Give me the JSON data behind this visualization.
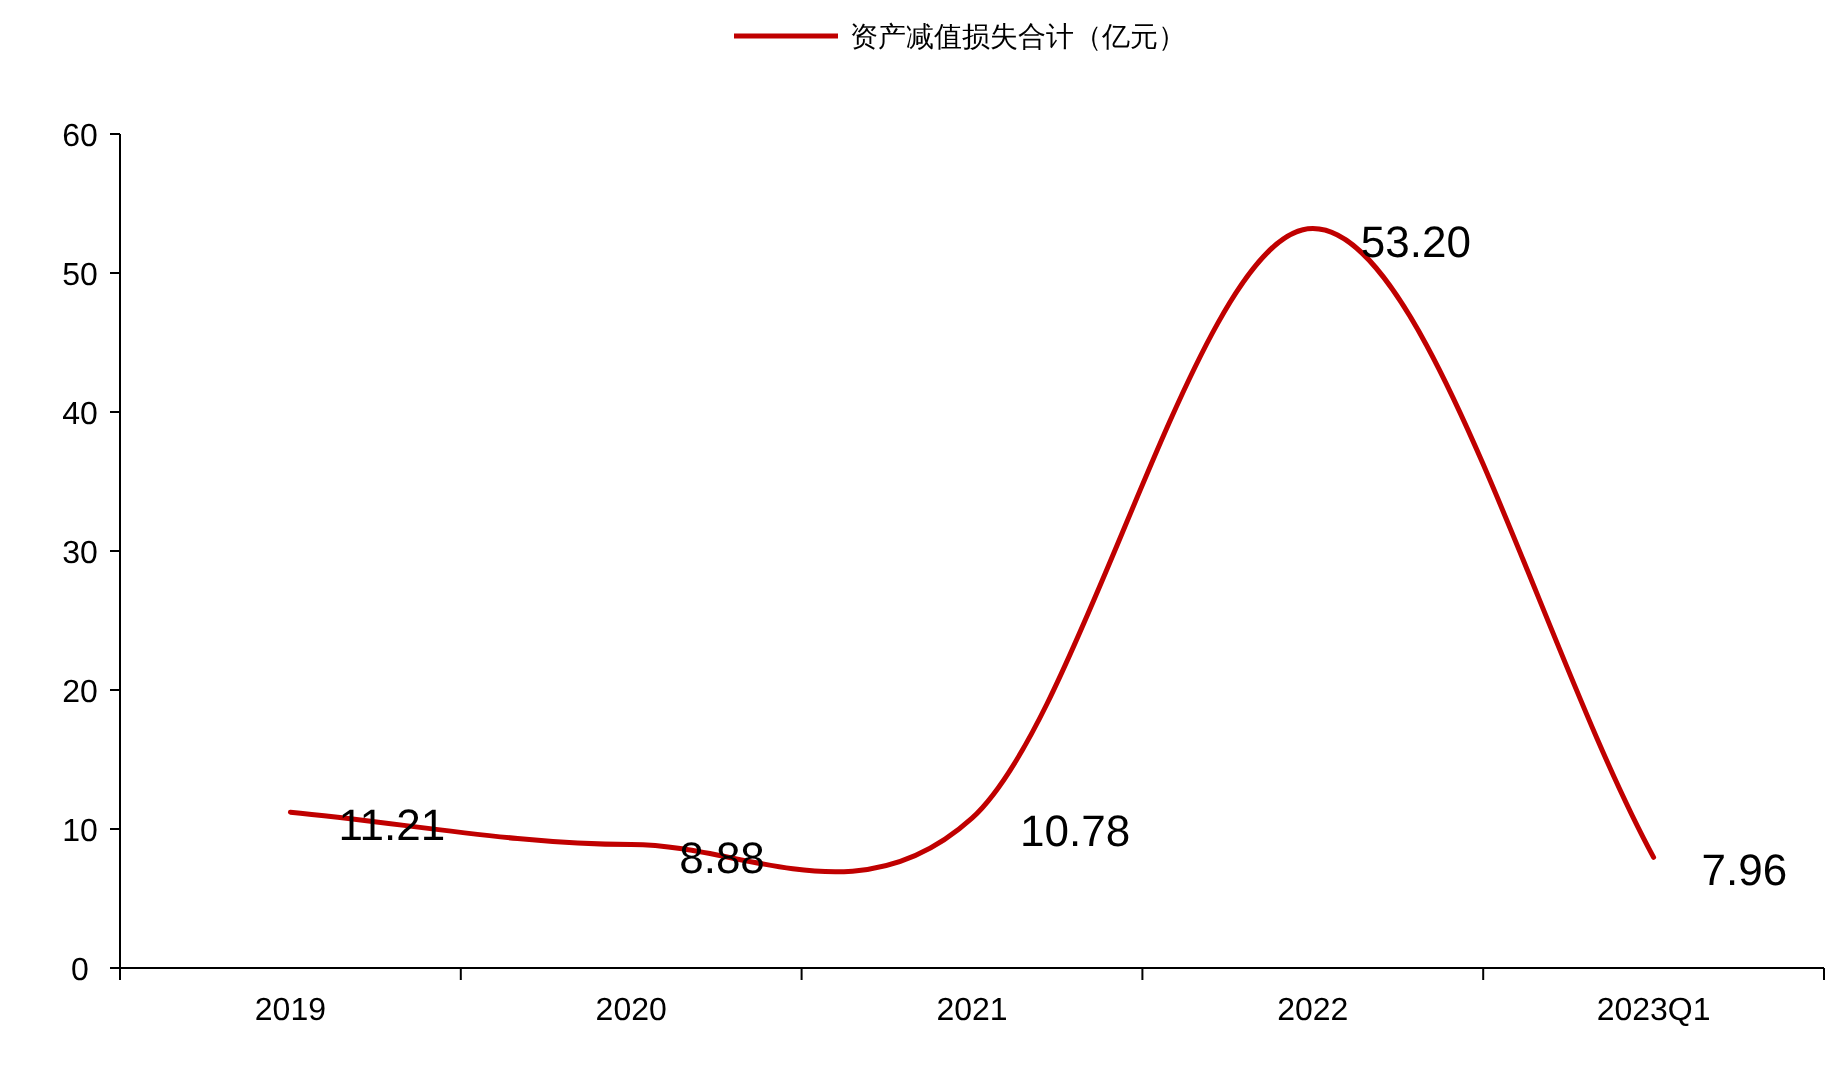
{
  "chart_data": {
    "type": "line",
    "categories": [
      "2019",
      "2020",
      "2021",
      "2022",
      "2023Q1"
    ],
    "series": [
      {
        "name": "资产减值损失合计（亿元）",
        "color": "#c00000",
        "values": [
          11.21,
          8.88,
          10.78,
          53.2,
          7.96
        ],
        "value_labels": [
          "11.21",
          "8.88",
          "10.78",
          "53.20",
          "7.96"
        ]
      }
    ],
    "ylim": [
      0,
      60
    ],
    "yticks": [
      0,
      10,
      20,
      30,
      40,
      50,
      60
    ],
    "legend": "top"
  }
}
